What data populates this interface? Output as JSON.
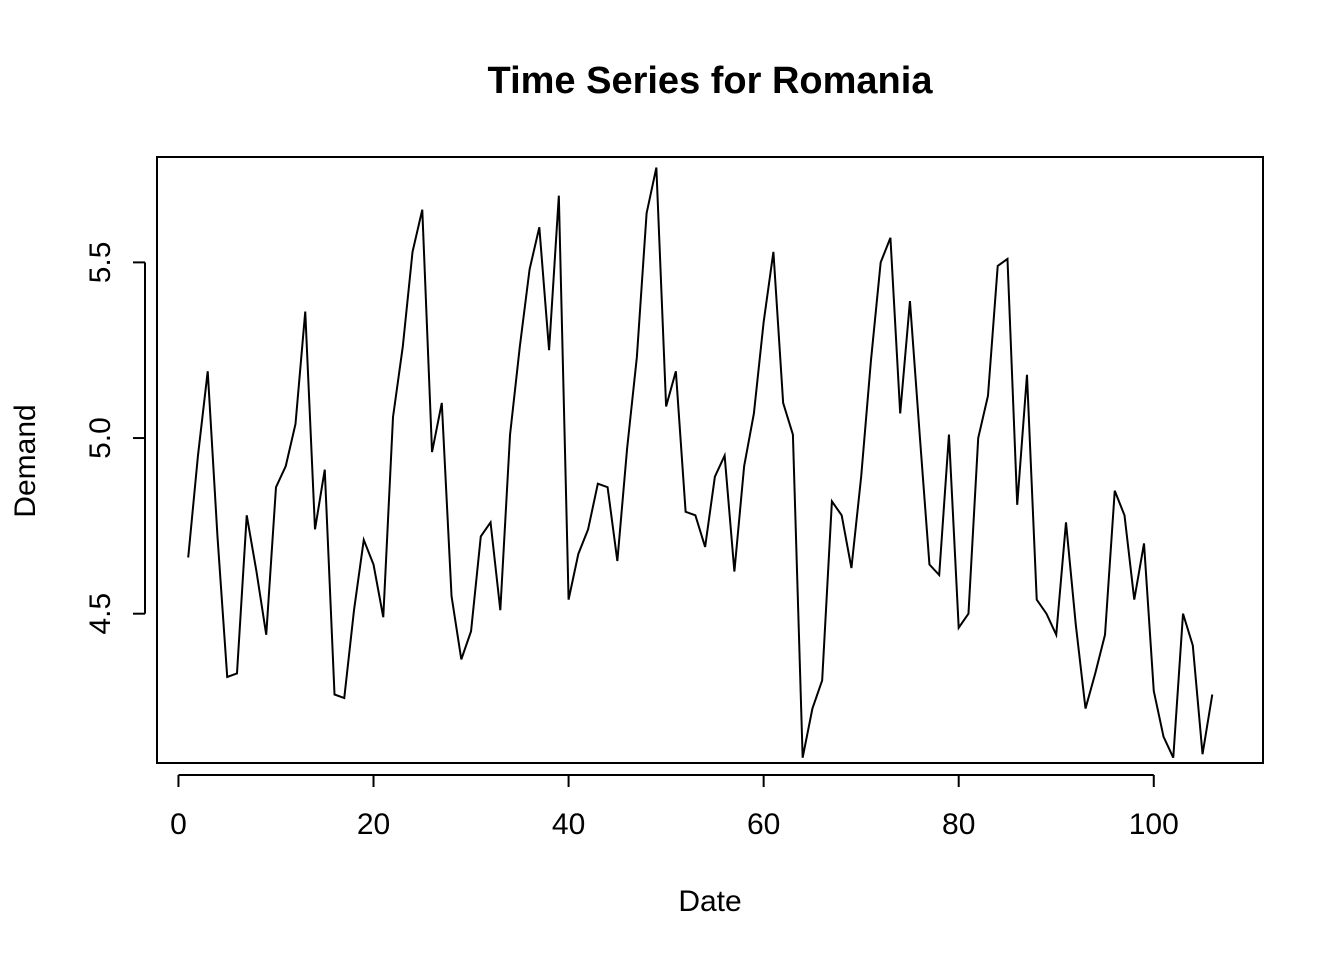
{
  "chart_data": {
    "type": "line",
    "title": "Time Series for Romania",
    "xlabel": "Date",
    "ylabel": "Demand",
    "xlim": [
      -2.2,
      111.2
    ],
    "ylim": [
      4.075,
      5.8
    ],
    "x_ticks": [
      0,
      20,
      40,
      60,
      80,
      100
    ],
    "x_tick_labels": [
      "0",
      "20",
      "40",
      "60",
      "80",
      "100"
    ],
    "y_ticks": [
      4.5,
      5.0,
      5.5
    ],
    "y_tick_labels": [
      "4.5",
      "5.0",
      "5.5"
    ],
    "grid": false,
    "legend": "none",
    "line_color": "#000000",
    "series": [
      {
        "x": [
          1,
          2,
          3,
          4,
          5,
          6,
          7,
          8,
          9,
          10,
          11,
          12,
          13,
          14,
          15,
          16,
          17,
          18,
          19,
          20,
          21,
          22,
          23,
          24,
          25,
          26,
          27,
          28,
          29,
          30,
          31,
          32,
          33,
          34,
          35,
          36,
          37,
          38,
          39,
          40,
          41,
          42,
          43,
          44,
          45,
          46,
          47,
          48,
          49,
          50,
          51,
          52,
          53,
          54,
          55,
          56,
          57,
          58,
          59,
          60,
          61,
          62,
          63,
          64,
          65,
          66,
          67,
          68,
          69,
          70,
          71,
          72,
          73,
          74,
          75,
          76,
          77,
          78,
          79,
          80,
          81,
          82,
          83,
          84,
          85,
          86,
          87,
          88,
          89,
          90,
          91,
          92,
          93,
          94,
          95,
          96,
          97,
          98,
          99,
          100,
          101,
          102,
          103,
          104,
          105,
          106
        ],
        "values": [
          4.66,
          4.95,
          5.19,
          4.72,
          4.32,
          4.33,
          4.78,
          4.62,
          4.44,
          4.86,
          4.92,
          5.04,
          5.36,
          4.74,
          4.91,
          4.27,
          4.26,
          4.51,
          4.71,
          4.64,
          4.49,
          5.06,
          5.26,
          5.53,
          5.65,
          4.96,
          5.1,
          4.55,
          4.37,
          4.45,
          4.72,
          4.76,
          4.51,
          5.01,
          5.26,
          5.48,
          5.6,
          5.25,
          5.69,
          4.54,
          4.67,
          4.74,
          4.87,
          4.86,
          4.65,
          4.97,
          5.23,
          5.64,
          5.77,
          5.09,
          5.19,
          4.79,
          4.78,
          4.69,
          4.89,
          4.95,
          4.62,
          4.92,
          5.07,
          5.33,
          5.53,
          5.1,
          5.01,
          4.09,
          4.23,
          4.31,
          4.82,
          4.78,
          4.63,
          4.89,
          5.22,
          5.5,
          5.57,
          5.07,
          5.39,
          5.01,
          4.64,
          4.61,
          5.01,
          4.46,
          4.5,
          5.0,
          5.12,
          5.49,
          5.51,
          4.81,
          5.18,
          4.54,
          4.5,
          4.44,
          4.76,
          4.47,
          4.23,
          4.33,
          4.44,
          4.85,
          4.78,
          4.54,
          4.7,
          4.28,
          4.15,
          4.09,
          4.5,
          4.41,
          4.1,
          4.27
        ]
      }
    ]
  }
}
